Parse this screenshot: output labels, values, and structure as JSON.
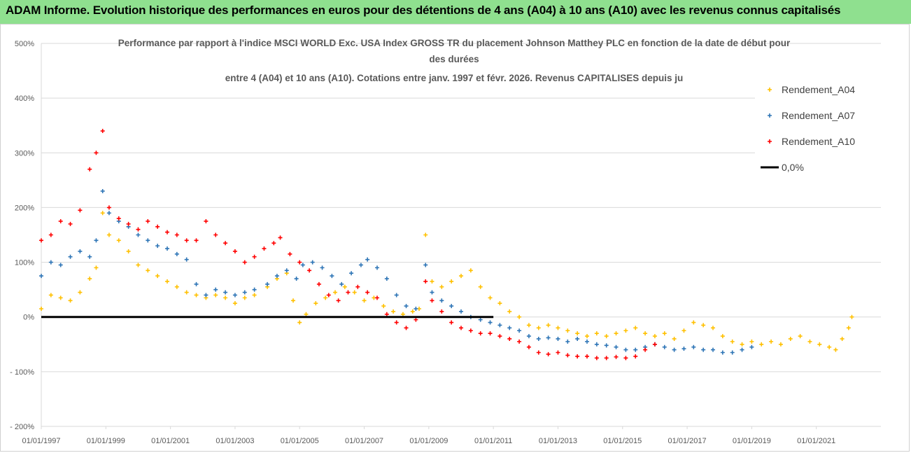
{
  "banner": {
    "title": "ADAM Informe. Evolution historique des performances en euros pour des détentions de 4 ans (A04) à 10 ans (A10) avec les revenus connus capitalisés"
  },
  "colors": {
    "banner_bg": "#8fe08f",
    "A04": "#ffc000",
    "A07": "#2e75b6",
    "A10": "#ff0000",
    "zero_line": "#000000"
  },
  "chart_data": {
    "type": "scatter",
    "title_lines": [
      "Performance par rapport à l'indice MSCI WORLD Exc. USA Index GROSS TR  du placement Johnson Matthey PLC en fonction de la date de début pour",
      "des durées",
      "entre 4 (A04) et 10 ans (A10). Cotations entre janv. 1997 et févr. 2026. Revenus CAPITALISES depuis ju"
    ],
    "x_range": [
      "1997-01-01",
      "2022-12-31"
    ],
    "ylim": [
      -200,
      500
    ],
    "y_ticks": [
      {
        "value": 500,
        "label": "500%"
      },
      {
        "value": 400,
        "label": "400%"
      },
      {
        "value": 300,
        "label": "300%"
      },
      {
        "value": 200,
        "label": "200%"
      },
      {
        "value": 100,
        "label": "100%"
      },
      {
        "value": 0,
        "label": "0%"
      },
      {
        "value": -100,
        "label": "- 100%"
      },
      {
        "value": -200,
        "label": "- 200%"
      }
    ],
    "x_ticks": [
      {
        "value": 1997.0,
        "label": "01/01/1997"
      },
      {
        "value": 1999.0,
        "label": "01/01/1999"
      },
      {
        "value": 2001.0,
        "label": "01/01/2001"
      },
      {
        "value": 2003.0,
        "label": "01/01/2003"
      },
      {
        "value": 2005.0,
        "label": "01/01/2005"
      },
      {
        "value": 2007.0,
        "label": "01/01/2007"
      },
      {
        "value": 2009.0,
        "label": "01/01/2009"
      },
      {
        "value": 2011.0,
        "label": "01/01/2011"
      },
      {
        "value": 2013.0,
        "label": "01/01/2013"
      },
      {
        "value": 2015.0,
        "label": "01/01/2015"
      },
      {
        "value": 2017.0,
        "label": "01/01/2017"
      },
      {
        "value": 2019.0,
        "label": "01/01/2019"
      },
      {
        "value": 2021.0,
        "label": "01/01/2021"
      }
    ],
    "gridlines": "horizontal",
    "legend_position": "right",
    "series": [
      {
        "name": "Rendement_A04",
        "color": "#ffc000",
        "points": [
          [
            1997.0,
            15
          ],
          [
            1997.3,
            40
          ],
          [
            1997.6,
            35
          ],
          [
            1997.9,
            30
          ],
          [
            1998.2,
            45
          ],
          [
            1998.5,
            70
          ],
          [
            1998.7,
            90
          ],
          [
            1998.9,
            190
          ],
          [
            1999.1,
            150
          ],
          [
            1999.4,
            140
          ],
          [
            1999.7,
            120
          ],
          [
            2000.0,
            95
          ],
          [
            2000.3,
            85
          ],
          [
            2000.6,
            75
          ],
          [
            2000.9,
            65
          ],
          [
            2001.2,
            55
          ],
          [
            2001.5,
            45
          ],
          [
            2001.8,
            40
          ],
          [
            2002.1,
            35
          ],
          [
            2002.4,
            40
          ],
          [
            2002.7,
            35
          ],
          [
            2003.0,
            25
          ],
          [
            2003.3,
            35
          ],
          [
            2003.6,
            40
          ],
          [
            2004.0,
            55
          ],
          [
            2004.3,
            70
          ],
          [
            2004.6,
            80
          ],
          [
            2004.8,
            30
          ],
          [
            2005.0,
            -10
          ],
          [
            2005.2,
            5
          ],
          [
            2005.5,
            25
          ],
          [
            2005.8,
            35
          ],
          [
            2006.1,
            45
          ],
          [
            2006.4,
            55
          ],
          [
            2006.7,
            45
          ],
          [
            2007.0,
            30
          ],
          [
            2007.3,
            35
          ],
          [
            2007.6,
            20
          ],
          [
            2007.9,
            10
          ],
          [
            2008.2,
            5
          ],
          [
            2008.5,
            10
          ],
          [
            2008.7,
            15
          ],
          [
            2008.9,
            150
          ],
          [
            2009.1,
            65
          ],
          [
            2009.4,
            55
          ],
          [
            2009.7,
            65
          ],
          [
            2010.0,
            75
          ],
          [
            2010.3,
            85
          ],
          [
            2010.6,
            55
          ],
          [
            2010.9,
            35
          ],
          [
            2011.2,
            25
          ],
          [
            2011.5,
            10
          ],
          [
            2011.8,
            0
          ],
          [
            2012.1,
            -15
          ],
          [
            2012.4,
            -20
          ],
          [
            2012.7,
            -15
          ],
          [
            2013.0,
            -20
          ],
          [
            2013.3,
            -25
          ],
          [
            2013.6,
            -30
          ],
          [
            2013.9,
            -35
          ],
          [
            2014.2,
            -30
          ],
          [
            2014.5,
            -35
          ],
          [
            2014.8,
            -30
          ],
          [
            2015.1,
            -25
          ],
          [
            2015.4,
            -20
          ],
          [
            2015.7,
            -30
          ],
          [
            2016.0,
            -35
          ],
          [
            2016.3,
            -30
          ],
          [
            2016.6,
            -40
          ],
          [
            2016.9,
            -25
          ],
          [
            2017.2,
            -10
          ],
          [
            2017.5,
            -15
          ],
          [
            2017.8,
            -20
          ],
          [
            2018.1,
            -35
          ],
          [
            2018.4,
            -45
          ],
          [
            2018.7,
            -50
          ],
          [
            2019.0,
            -45
          ],
          [
            2019.3,
            -50
          ],
          [
            2019.6,
            -45
          ],
          [
            2019.9,
            -50
          ],
          [
            2020.2,
            -40
          ],
          [
            2020.5,
            -35
          ],
          [
            2020.8,
            -45
          ],
          [
            2021.1,
            -50
          ],
          [
            2021.4,
            -55
          ],
          [
            2021.6,
            -60
          ],
          [
            2021.8,
            -40
          ],
          [
            2022.0,
            -20
          ],
          [
            2022.1,
            0
          ]
        ]
      },
      {
        "name": "Rendement_A07",
        "color": "#2e75b6",
        "points": [
          [
            1997.0,
            75
          ],
          [
            1997.3,
            100
          ],
          [
            1997.6,
            95
          ],
          [
            1997.9,
            110
          ],
          [
            1998.2,
            120
          ],
          [
            1998.5,
            110
          ],
          [
            1998.7,
            140
          ],
          [
            1998.9,
            230
          ],
          [
            1999.1,
            190
          ],
          [
            1999.4,
            175
          ],
          [
            1999.7,
            165
          ],
          [
            2000.0,
            150
          ],
          [
            2000.3,
            140
          ],
          [
            2000.6,
            130
          ],
          [
            2000.9,
            125
          ],
          [
            2001.2,
            115
          ],
          [
            2001.5,
            105
          ],
          [
            2001.8,
            60
          ],
          [
            2002.1,
            40
          ],
          [
            2002.4,
            50
          ],
          [
            2002.7,
            45
          ],
          [
            2003.0,
            40
          ],
          [
            2003.3,
            45
          ],
          [
            2003.6,
            50
          ],
          [
            2004.0,
            60
          ],
          [
            2004.3,
            75
          ],
          [
            2004.6,
            85
          ],
          [
            2004.9,
            70
          ],
          [
            2005.1,
            95
          ],
          [
            2005.4,
            100
          ],
          [
            2005.7,
            90
          ],
          [
            2006.0,
            75
          ],
          [
            2006.3,
            60
          ],
          [
            2006.6,
            80
          ],
          [
            2006.9,
            95
          ],
          [
            2007.1,
            105
          ],
          [
            2007.4,
            90
          ],
          [
            2007.7,
            70
          ],
          [
            2008.0,
            40
          ],
          [
            2008.3,
            20
          ],
          [
            2008.6,
            15
          ],
          [
            2008.9,
            95
          ],
          [
            2009.1,
            45
          ],
          [
            2009.4,
            30
          ],
          [
            2009.7,
            20
          ],
          [
            2010.0,
            10
          ],
          [
            2010.3,
            0
          ],
          [
            2010.6,
            -5
          ],
          [
            2010.9,
            -10
          ],
          [
            2011.2,
            -15
          ],
          [
            2011.5,
            -20
          ],
          [
            2011.8,
            -25
          ],
          [
            2012.1,
            -35
          ],
          [
            2012.4,
            -40
          ],
          [
            2012.7,
            -38
          ],
          [
            2013.0,
            -40
          ],
          [
            2013.3,
            -45
          ],
          [
            2013.6,
            -40
          ],
          [
            2013.9,
            -45
          ],
          [
            2014.2,
            -50
          ],
          [
            2014.5,
            -52
          ],
          [
            2014.8,
            -55
          ],
          [
            2015.1,
            -60
          ],
          [
            2015.4,
            -60
          ],
          [
            2015.7,
            -55
          ],
          [
            2016.0,
            -50
          ],
          [
            2016.3,
            -55
          ],
          [
            2016.6,
            -60
          ],
          [
            2016.9,
            -58
          ],
          [
            2017.2,
            -55
          ],
          [
            2017.5,
            -60
          ],
          [
            2017.8,
            -60
          ],
          [
            2018.1,
            -65
          ],
          [
            2018.4,
            -65
          ],
          [
            2018.7,
            -60
          ],
          [
            2019.0,
            -55
          ]
        ]
      },
      {
        "name": "Rendement_A10",
        "color": "#ff0000",
        "points": [
          [
            1997.0,
            140
          ],
          [
            1997.3,
            150
          ],
          [
            1997.6,
            175
          ],
          [
            1997.9,
            170
          ],
          [
            1998.2,
            195
          ],
          [
            1998.5,
            270
          ],
          [
            1998.7,
            300
          ],
          [
            1998.9,
            340
          ],
          [
            1999.1,
            200
          ],
          [
            1999.4,
            180
          ],
          [
            1999.7,
            170
          ],
          [
            2000.0,
            160
          ],
          [
            2000.3,
            175
          ],
          [
            2000.6,
            165
          ],
          [
            2000.9,
            155
          ],
          [
            2001.2,
            150
          ],
          [
            2001.5,
            140
          ],
          [
            2001.8,
            140
          ],
          [
            2002.1,
            175
          ],
          [
            2002.4,
            150
          ],
          [
            2002.7,
            135
          ],
          [
            2003.0,
            120
          ],
          [
            2003.3,
            100
          ],
          [
            2003.6,
            110
          ],
          [
            2003.9,
            125
          ],
          [
            2004.2,
            135
          ],
          [
            2004.4,
            145
          ],
          [
            2004.7,
            115
          ],
          [
            2005.0,
            100
          ],
          [
            2005.3,
            85
          ],
          [
            2005.6,
            60
          ],
          [
            2005.9,
            40
          ],
          [
            2006.2,
            30
          ],
          [
            2006.5,
            45
          ],
          [
            2006.8,
            55
          ],
          [
            2007.1,
            45
          ],
          [
            2007.4,
            35
          ],
          [
            2007.7,
            5
          ],
          [
            2008.0,
            -10
          ],
          [
            2008.3,
            -20
          ],
          [
            2008.6,
            -5
          ],
          [
            2008.9,
            65
          ],
          [
            2009.1,
            30
          ],
          [
            2009.4,
            10
          ],
          [
            2009.7,
            -10
          ],
          [
            2010.0,
            -20
          ],
          [
            2010.3,
            -25
          ],
          [
            2010.6,
            -30
          ],
          [
            2010.9,
            -30
          ],
          [
            2011.2,
            -35
          ],
          [
            2011.5,
            -40
          ],
          [
            2011.8,
            -45
          ],
          [
            2012.1,
            -55
          ],
          [
            2012.4,
            -65
          ],
          [
            2012.7,
            -68
          ],
          [
            2013.0,
            -65
          ],
          [
            2013.3,
            -70
          ],
          [
            2013.6,
            -72
          ],
          [
            2013.9,
            -72
          ],
          [
            2014.2,
            -75
          ],
          [
            2014.5,
            -75
          ],
          [
            2014.8,
            -73
          ],
          [
            2015.1,
            -75
          ],
          [
            2015.4,
            -72
          ],
          [
            2015.7,
            -60
          ],
          [
            2016.0,
            -50
          ]
        ]
      },
      {
        "name": "0,0%",
        "color": "#000000",
        "points": [
          [
            1997.0,
            0
          ],
          [
            2011.0,
            0
          ]
        ]
      }
    ]
  }
}
